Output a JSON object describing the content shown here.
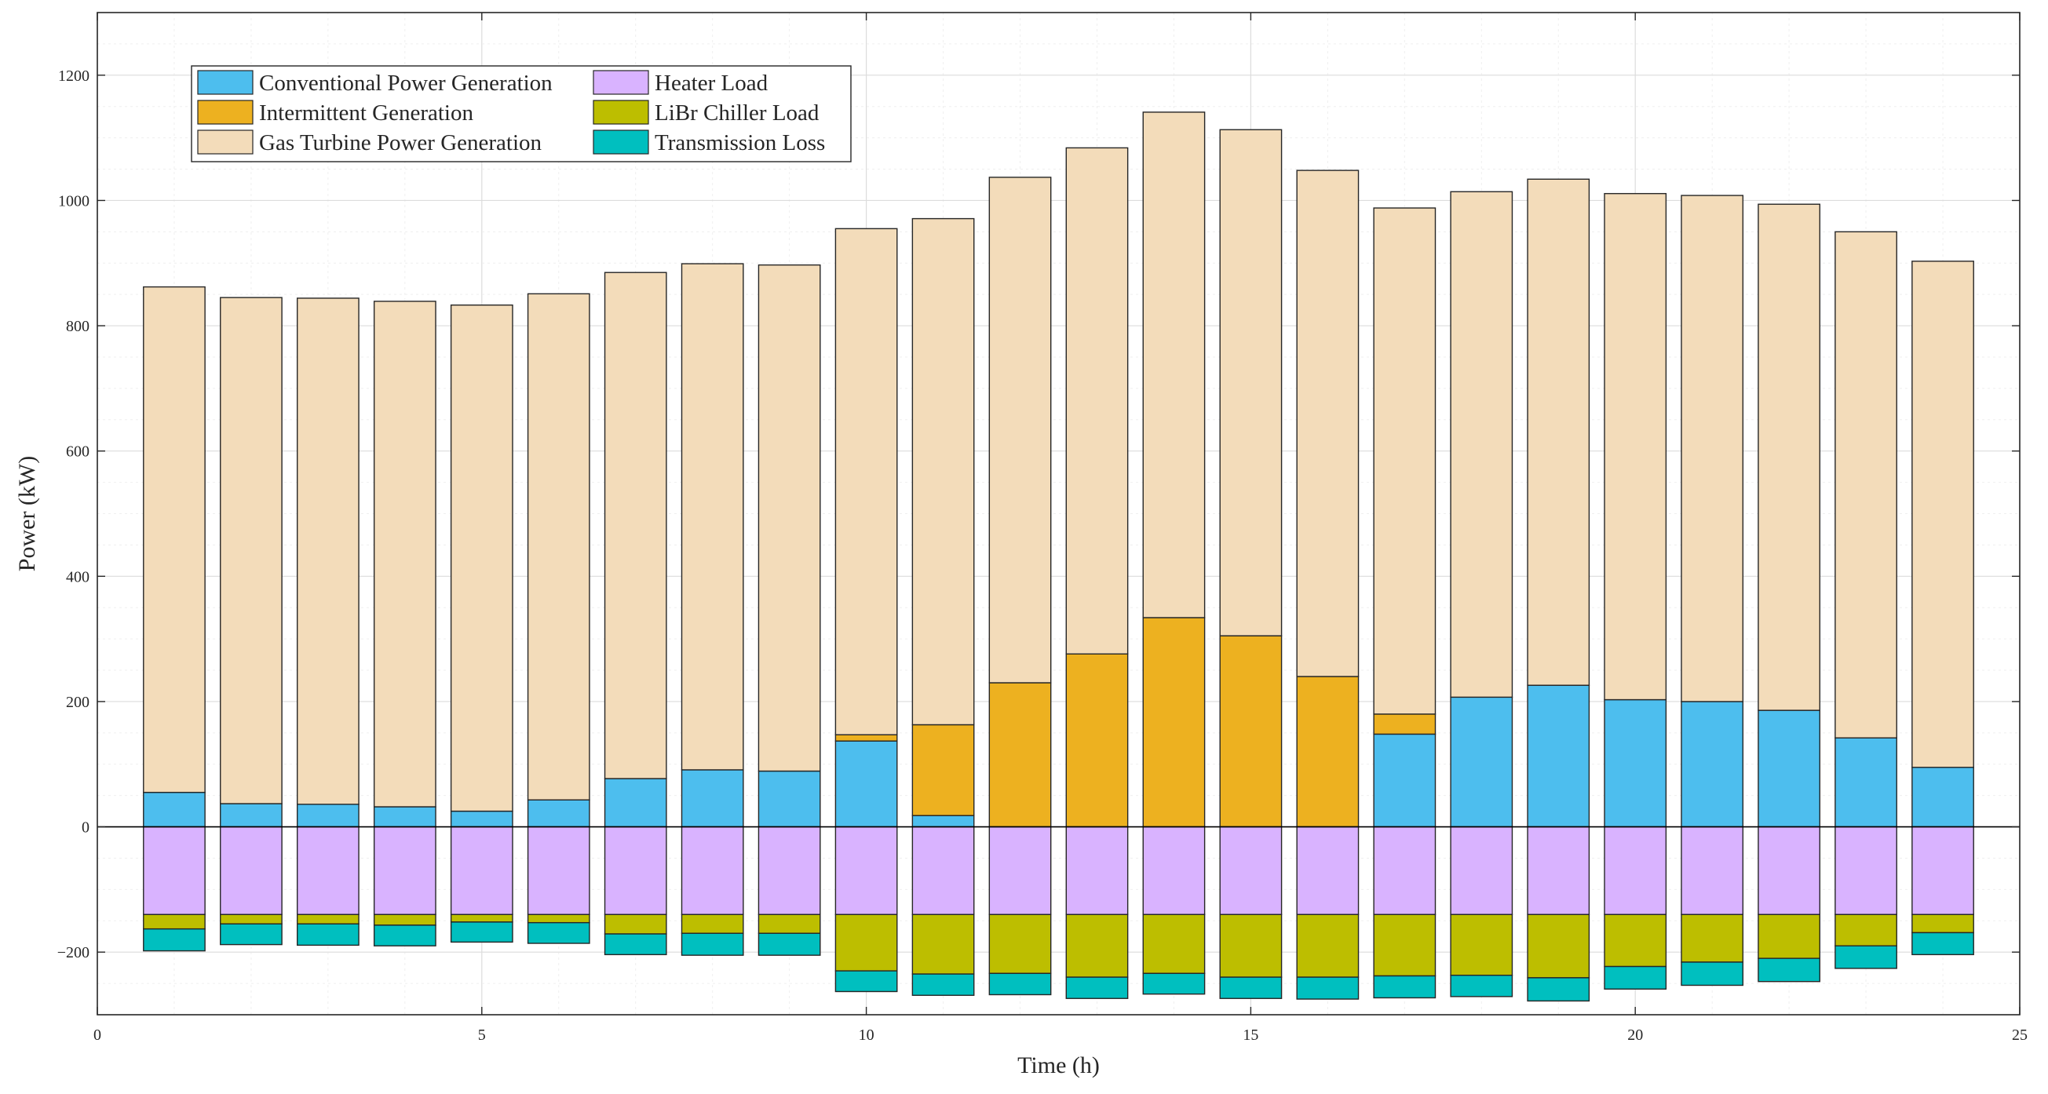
{
  "chart_data": {
    "type": "bar",
    "stacked": true,
    "title": "",
    "xlabel": "Time (h)",
    "ylabel": "Power (kW)",
    "xlim": [
      0,
      25
    ],
    "ylim": [
      -300,
      1300
    ],
    "xticks": [
      0,
      5,
      10,
      15,
      20,
      25
    ],
    "yticks": [
      -200,
      0,
      200,
      400,
      600,
      800,
      1000,
      1200
    ],
    "grid": true,
    "legend_position": "top-left",
    "x": [
      1,
      2,
      3,
      4,
      5,
      6,
      7,
      8,
      9,
      10,
      11,
      12,
      13,
      14,
      15,
      16,
      17,
      18,
      19,
      20,
      21,
      22,
      23,
      24
    ],
    "series": [
      {
        "name": "Conventional Power Generation",
        "color": "#4DBEEE",
        "values": [
          55,
          37,
          36,
          32,
          25,
          43,
          77,
          91,
          89,
          137,
          18,
          0,
          0,
          0,
          0,
          0,
          148,
          207,
          226,
          203,
          200,
          186,
          142,
          95
        ]
      },
      {
        "name": "Intermittent Generation",
        "color": "#EDB120",
        "values": [
          0,
          0,
          0,
          0,
          0,
          0,
          0,
          0,
          0,
          10,
          145,
          230,
          276,
          334,
          305,
          240,
          32,
          0,
          0,
          0,
          0,
          0,
          0,
          0
        ]
      },
      {
        "name": "Gas Turbine Power Generation",
        "color": "#F3DCBA",
        "values": [
          807,
          808,
          808,
          807,
          808,
          808,
          808,
          808,
          808,
          808,
          808,
          807,
          808,
          807,
          808,
          808,
          808,
          807,
          808,
          808,
          808,
          808,
          808,
          808
        ]
      },
      {
        "name": "Heater Load",
        "color": "#D9B3FF",
        "values": [
          -140,
          -140,
          -140,
          -140,
          -140,
          -140,
          -140,
          -140,
          -140,
          -140,
          -140,
          -140,
          -140,
          -140,
          -140,
          -140,
          -140,
          -140,
          -140,
          -140,
          -140,
          -140,
          -140,
          -140
        ]
      },
      {
        "name": "LiBr Chiller Load",
        "color": "#BDBE00",
        "values": [
          -23,
          -15,
          -15,
          -17,
          -12,
          -13,
          -31,
          -30,
          -30,
          -90,
          -95,
          -94,
          -100,
          -94,
          -100,
          -100,
          -98,
          -97,
          -101,
          -83,
          -76,
          -70,
          -50,
          -29
        ]
      },
      {
        "name": "Transmission Loss",
        "color": "#00BFBF",
        "values": [
          -35,
          -33,
          -34,
          -33,
          -32,
          -33,
          -33,
          -35,
          -35,
          -33,
          -34,
          -34,
          -34,
          -33,
          -34,
          -35,
          -35,
          -34,
          -37,
          -36,
          -37,
          -37,
          -36,
          -35
        ]
      }
    ]
  }
}
